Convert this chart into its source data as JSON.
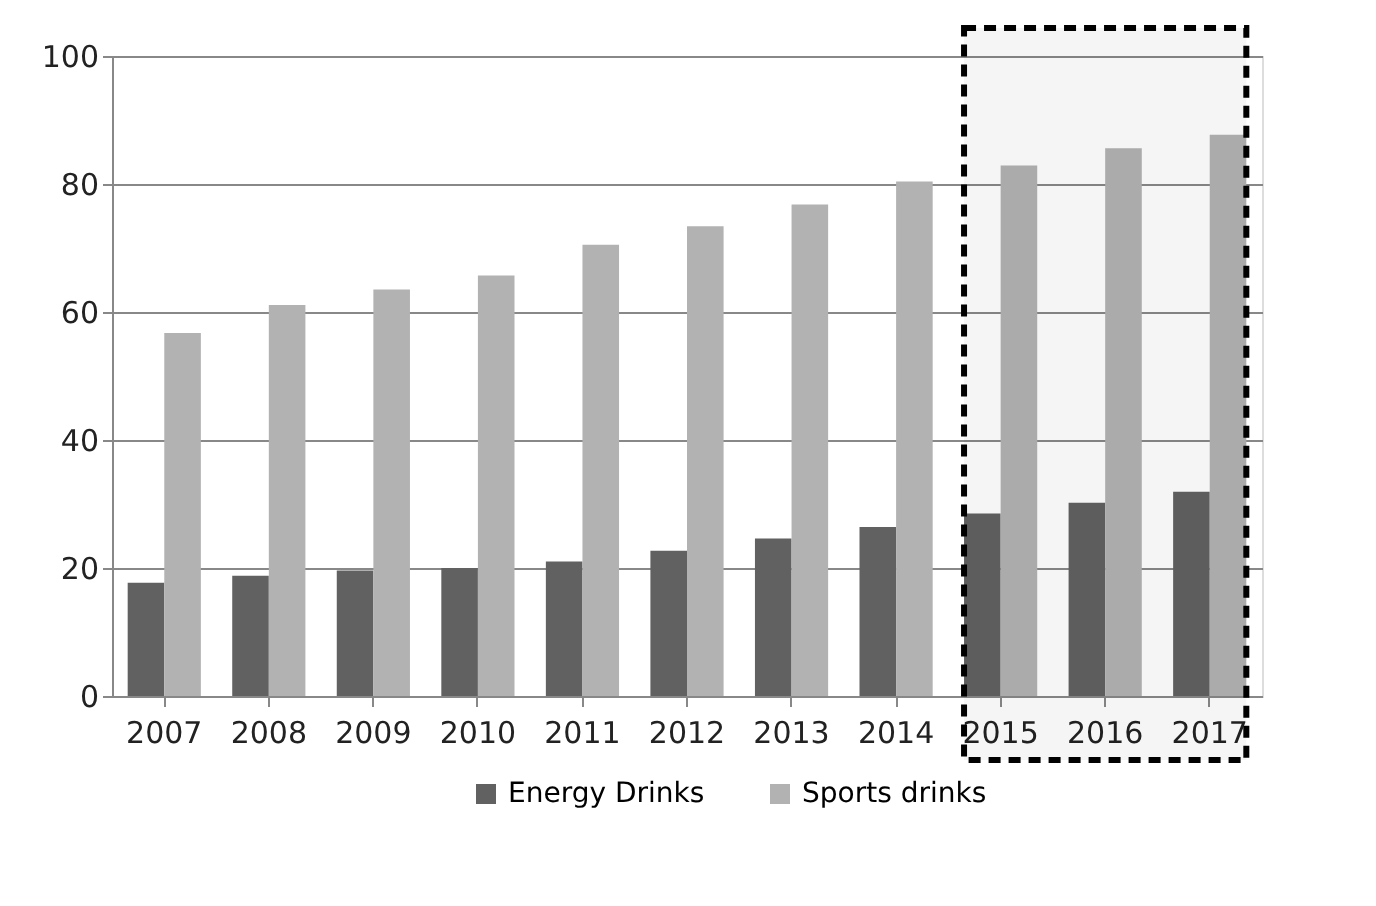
{
  "chart_data": {
    "type": "bar",
    "categories": [
      "2007",
      "2008",
      "2009",
      "2010",
      "2011",
      "2012",
      "2013",
      "2014",
      "2015",
      "2016",
      "2017"
    ],
    "series": [
      {
        "name": "Energy Drinks",
        "color": "#616161",
        "values": [
          17.7,
          18.8,
          19.6,
          20.0,
          21.0,
          22.7,
          24.6,
          26.4,
          28.5,
          30.2,
          31.9
        ]
      },
      {
        "name": "Sports drinks",
        "color": "#b2b2b2",
        "values": [
          56.7,
          61.1,
          63.5,
          65.7,
          70.5,
          73.4,
          76.8,
          80.4,
          82.9,
          85.6,
          87.7
        ]
      }
    ],
    "ylim": [
      0,
      100
    ],
    "yticks": [
      0,
      20,
      40,
      60,
      80,
      100
    ],
    "grid": "y",
    "legend": "bottom",
    "bands": [
      {
        "axis": "x",
        "from": "2015",
        "to": "2017",
        "color": "#000000"
      }
    ]
  }
}
